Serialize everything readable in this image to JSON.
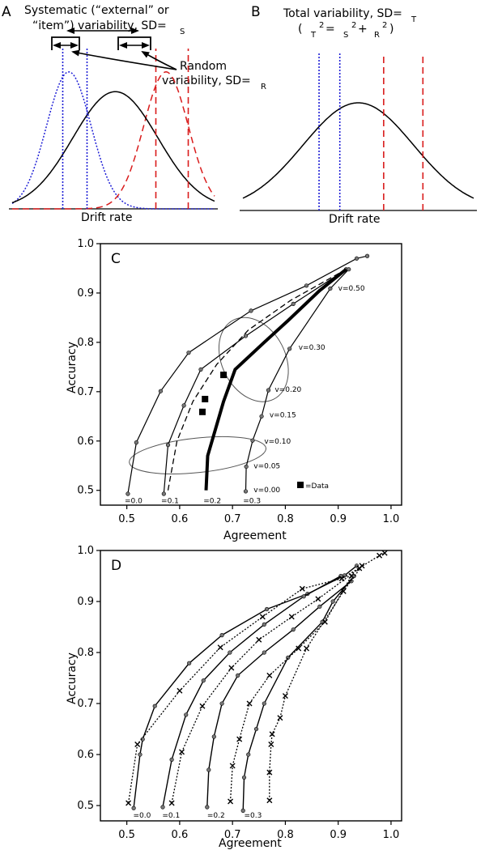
{
  "panel_a": {
    "letter": "A",
    "title_line1": "Systematic (“external” or",
    "title_line2": "“item”) variability, SD=",
    "title_sub": "S",
    "random_line1": "Random",
    "random_line2": "variability, SD=",
    "random_sub": "R",
    "xlabel": "Drift rate"
  },
  "panel_b": {
    "letter": "B",
    "title_line1": "Total variability, SD=",
    "title_sub": "T",
    "formula": {
      "open": "(",
      "t_sub": "T",
      "sq1": "2",
      "eq": "=",
      "s_sub": "S",
      "sq2": "2",
      "plus": "+",
      "r_sub": "R",
      "sq3": "2",
      "close": ")"
    },
    "xlabel": "Drift rate"
  },
  "panel_c": {
    "letter": "C",
    "xlabel": "Agreement",
    "ylabel": "Accuracy",
    "legend": "=Data"
  },
  "panel_d": {
    "letter": "D",
    "xlabel": "Agreement",
    "ylabel": "Accuracy"
  },
  "chart_data": [
    {
      "type": "line",
      "panel": "A",
      "title": "Systematic (“external” or “item”) variability, SD=S",
      "xlabel": "Drift rate",
      "series": [
        {
          "name": "Random variability (blue)",
          "kind": "normal",
          "mean": 0.28,
          "sd": 0.11,
          "peak": 0.9
        },
        {
          "name": "Random variability (red)",
          "kind": "normal",
          "mean": 0.76,
          "sd": 0.11,
          "peak": 0.9
        },
        {
          "name": "Systematic variability",
          "kind": "normal",
          "mean": 0.51,
          "sd": 0.21,
          "peak": 0.77
        }
      ],
      "vlines": [
        0.25,
        0.37,
        0.71,
        0.87
      ],
      "xlim": [
        0,
        1
      ]
    },
    {
      "type": "line",
      "panel": "B",
      "title": "Total variability, SD=T",
      "xlabel": "Drift rate",
      "series": [
        {
          "name": "Total variability",
          "kind": "normal",
          "mean": 0.5,
          "sd": 0.24,
          "peak": 0.7
        }
      ],
      "vlines": [
        0.33,
        0.42,
        0.61,
        0.78
      ],
      "xlim": [
        0,
        1
      ]
    },
    {
      "type": "line",
      "panel": "C",
      "xlabel": "Agreement",
      "ylabel": "Accuracy",
      "xlim": [
        0.45,
        1.02
      ],
      "ylim": [
        0.47,
        1.0
      ],
      "xticks": [
        0.5,
        0.6,
        0.7,
        0.8,
        0.9,
        1.0
      ],
      "yticks": [
        0.5,
        0.6,
        0.7,
        0.8,
        0.9,
        1.0
      ],
      "tick_labels_x": [
        "0.5",
        "0.6",
        "0.7",
        "0.8",
        "0.9",
        "1.0"
      ],
      "tick_labels_y": [
        "0.5",
        "0.6",
        "0.7",
        "0.8",
        "0.9",
        "1.0"
      ],
      "series": [
        {
          "label": "=0.0",
          "points": [
            [
              0.502,
              0.493
            ],
            [
              0.518,
              0.597
            ],
            [
              0.564,
              0.701
            ],
            [
              0.617,
              0.779
            ],
            [
              0.735,
              0.864
            ],
            [
              0.84,
              0.915
            ],
            [
              0.935,
              0.97
            ],
            [
              0.955,
              0.975
            ]
          ]
        },
        {
          "label": "=0.1",
          "points": [
            [
              0.57,
              0.493
            ],
            [
              0.578,
              0.592
            ],
            [
              0.608,
              0.672
            ],
            [
              0.64,
              0.745
            ],
            [
              0.725,
              0.813
            ],
            [
              0.815,
              0.878
            ],
            [
              0.915,
              0.948
            ]
          ]
        },
        {
          "label": "=0.3",
          "points": [
            [
              0.725,
              0.498
            ],
            [
              0.726,
              0.548
            ],
            [
              0.738,
              0.601
            ],
            [
              0.755,
              0.65
            ],
            [
              0.768,
              0.703
            ],
            [
              0.808,
              0.787
            ],
            [
              0.885,
              0.909
            ],
            [
              0.92,
              0.948
            ]
          ]
        }
      ],
      "dashed_curve": [
        [
          0.578,
          0.5
        ],
        [
          0.595,
          0.6
        ],
        [
          0.625,
          0.68
        ],
        [
          0.67,
          0.755
        ],
        [
          0.73,
          0.825
        ],
        [
          0.81,
          0.885
        ],
        [
          0.915,
          0.948
        ]
      ],
      "bold_curve": [
        [
          0.65,
          0.5
        ],
        [
          0.653,
          0.57
        ],
        [
          0.683,
          0.68
        ],
        [
          0.705,
          0.745
        ],
        [
          0.76,
          0.8
        ],
        [
          0.806,
          0.845
        ],
        [
          0.865,
          0.905
        ],
        [
          0.915,
          0.948
        ]
      ],
      "drift_labels": [
        {
          "text": "v=0.50",
          "x": 0.9,
          "y": 0.905
        },
        {
          "text": "v=0.30",
          "x": 0.825,
          "y": 0.785
        },
        {
          "text": "v=0.20",
          "x": 0.78,
          "y": 0.7
        },
        {
          "text": "v=0.15",
          "x": 0.77,
          "y": 0.648
        },
        {
          "text": "v=0.10",
          "x": 0.76,
          "y": 0.595
        },
        {
          "text": "v=0.05",
          "x": 0.74,
          "y": 0.545
        },
        {
          "text": "v=0.00",
          "x": 0.74,
          "y": 0.496
        }
      ],
      "eta_labels": [
        {
          "text": "=0.0",
          "x": 0.496,
          "y": 0.474
        },
        {
          "text": "=0.1",
          "x": 0.565,
          "y": 0.474
        },
        {
          "text": "=0.2",
          "x": 0.645,
          "y": 0.474
        },
        {
          "text": "=0.3",
          "x": 0.72,
          "y": 0.474
        }
      ],
      "data_points": [
        [
          0.643,
          0.659
        ],
        [
          0.648,
          0.685
        ],
        [
          0.683,
          0.734
        ]
      ],
      "ellipses": [
        {
          "cx": 0.634,
          "cy": 0.571,
          "rx": 0.13,
          "ry": 0.035,
          "rot": -6
        },
        {
          "cx": 0.74,
          "cy": 0.765,
          "rx": 0.06,
          "ry": 0.09,
          "rot": -27
        }
      ]
    },
    {
      "type": "line",
      "panel": "D",
      "xlabel": "Agreement",
      "ylabel": "Accuracy",
      "xlim": [
        0.45,
        1.02
      ],
      "ylim": [
        0.47,
        1.0
      ],
      "xticks": [
        0.5,
        0.6,
        0.7,
        0.8,
        0.9,
        1.0
      ],
      "yticks": [
        0.5,
        0.6,
        0.7,
        0.8,
        0.9,
        1.0
      ],
      "tick_labels_x": [
        "0.5",
        "0.6",
        "0.7",
        "0.8",
        "0.9",
        "1.0"
      ],
      "tick_labels_y": [
        "0.5",
        "0.6",
        "0.7",
        "0.8",
        "0.9",
        "1.0"
      ],
      "solid_series": [
        {
          "label": "=0.0",
          "points": [
            [
              0.513,
              0.495
            ],
            [
              0.525,
              0.6
            ],
            [
              0.53,
              0.63
            ],
            [
              0.553,
              0.695
            ],
            [
              0.618,
              0.779
            ],
            [
              0.68,
              0.834
            ],
            [
              0.765,
              0.885
            ],
            [
              0.842,
              0.915
            ],
            [
              0.912,
              0.951
            ],
            [
              0.935,
              0.97
            ]
          ]
        },
        {
          "label": "=0.1",
          "points": [
            [
              0.568,
              0.497
            ],
            [
              0.585,
              0.59
            ],
            [
              0.612,
              0.678
            ],
            [
              0.645,
              0.745
            ],
            [
              0.695,
              0.8
            ],
            [
              0.76,
              0.855
            ],
            [
              0.835,
              0.91
            ],
            [
              0.905,
              0.95
            ]
          ]
        },
        {
          "label": "=0.2",
          "points": [
            [
              0.652,
              0.497
            ],
            [
              0.655,
              0.57
            ],
            [
              0.665,
              0.635
            ],
            [
              0.68,
              0.7
            ],
            [
              0.71,
              0.755
            ],
            [
              0.76,
              0.8
            ],
            [
              0.815,
              0.845
            ],
            [
              0.865,
              0.89
            ],
            [
              0.925,
              0.94
            ]
          ]
        },
        {
          "label": "=0.3",
          "points": [
            [
              0.72,
              0.49
            ],
            [
              0.722,
              0.555
            ],
            [
              0.73,
              0.6
            ],
            [
              0.745,
              0.65
            ],
            [
              0.76,
              0.7
            ],
            [
              0.805,
              0.79
            ],
            [
              0.87,
              0.86
            ],
            [
              0.89,
              0.9
            ],
            [
              0.93,
              0.95
            ]
          ]
        }
      ],
      "dotted_series": [
        {
          "points": [
            [
              0.503,
              0.505
            ],
            [
              0.52,
              0.62
            ],
            [
              0.6,
              0.725
            ],
            [
              0.677,
              0.81
            ],
            [
              0.757,
              0.87
            ],
            [
              0.832,
              0.925
            ],
            [
              0.907,
              0.945
            ],
            [
              0.978,
              0.99
            ],
            [
              0.988,
              0.995
            ]
          ]
        },
        {
          "points": [
            [
              0.585,
              0.505
            ],
            [
              0.604,
              0.605
            ],
            [
              0.643,
              0.695
            ],
            [
              0.698,
              0.77
            ],
            [
              0.75,
              0.825
            ],
            [
              0.812,
              0.87
            ],
            [
              0.862,
              0.905
            ],
            [
              0.94,
              0.965
            ]
          ]
        },
        {
          "points": [
            [
              0.696,
              0.508
            ],
            [
              0.7,
              0.578
            ],
            [
              0.713,
              0.63
            ],
            [
              0.732,
              0.7
            ],
            [
              0.77,
              0.755
            ],
            [
              0.825,
              0.808
            ],
            [
              0.875,
              0.86
            ],
            [
              0.925,
              0.95
            ]
          ]
        },
        {
          "points": [
            [
              0.77,
              0.51
            ],
            [
              0.77,
              0.565
            ],
            [
              0.773,
              0.62
            ],
            [
              0.775,
              0.64
            ],
            [
              0.79,
              0.672
            ],
            [
              0.8,
              0.715
            ],
            [
              0.84,
              0.808
            ],
            [
              0.91,
              0.92
            ],
            [
              0.945,
              0.97
            ]
          ]
        }
      ],
      "eta_labels": [
        {
          "text": "=0.0",
          "x": 0.512,
          "y": 0.476
        },
        {
          "text": "=0.1",
          "x": 0.567,
          "y": 0.476
        },
        {
          "text": "=0.2",
          "x": 0.652,
          "y": 0.476
        },
        {
          "text": "=0.3",
          "x": 0.722,
          "y": 0.476
        }
      ]
    }
  ]
}
